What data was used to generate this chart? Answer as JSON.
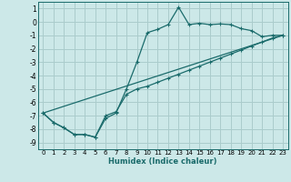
{
  "xlabel": "Humidex (Indice chaleur)",
  "bg_color": "#cce8e8",
  "grid_color": "#aacccc",
  "line_color": "#1a6b6b",
  "xlim": [
    -0.5,
    23.5
  ],
  "ylim": [
    -9.5,
    1.5
  ],
  "xticks": [
    0,
    1,
    2,
    3,
    4,
    5,
    6,
    7,
    8,
    9,
    10,
    11,
    12,
    13,
    14,
    15,
    16,
    17,
    18,
    19,
    20,
    21,
    22,
    23
  ],
  "yticks": [
    -9,
    -8,
    -7,
    -6,
    -5,
    -4,
    -3,
    -2,
    -1,
    0,
    1
  ],
  "line1_x": [
    0,
    1,
    2,
    3,
    4,
    5,
    6,
    7,
    8,
    9,
    10,
    11,
    12,
    13,
    14,
    15,
    16,
    17,
    18,
    19,
    20,
    21,
    22,
    23
  ],
  "line1_y": [
    -6.8,
    -7.5,
    -7.9,
    -8.4,
    -8.4,
    -8.6,
    -7.2,
    -6.8,
    -5.0,
    -3.0,
    -0.8,
    -0.55,
    -0.2,
    1.1,
    -0.2,
    -0.1,
    -0.2,
    -0.15,
    -0.2,
    -0.5,
    -0.65,
    -1.1,
    -1.0,
    -1.0
  ],
  "line2_x": [
    0,
    1,
    2,
    3,
    4,
    5,
    6,
    7,
    8,
    9,
    10,
    11,
    12,
    13,
    14,
    15,
    16,
    17,
    18,
    19,
    20,
    21,
    22,
    23
  ],
  "line2_y": [
    -6.8,
    -7.5,
    -7.9,
    -8.4,
    -8.4,
    -8.6,
    -7.0,
    -6.7,
    -5.4,
    -5.0,
    -4.8,
    -4.5,
    -4.2,
    -3.9,
    -3.6,
    -3.3,
    -3.0,
    -2.7,
    -2.4,
    -2.1,
    -1.8,
    -1.5,
    -1.2,
    -1.0
  ],
  "line3_x": [
    0,
    23
  ],
  "line3_y": [
    -6.8,
    -1.0
  ]
}
